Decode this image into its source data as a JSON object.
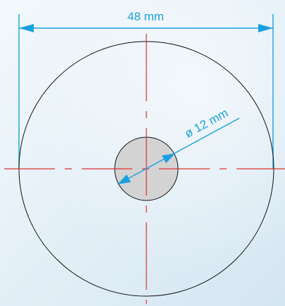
{
  "dimensions": {
    "outer_diameter_label": "48 mm",
    "inner_diameter_label": "ø 12 mm"
  },
  "colors": {
    "dimension": "#1aa0e0",
    "centerline": "#e03030",
    "outline": "#111111",
    "hole_fill": "#d3d3d3",
    "background": "#e6f1f8"
  }
}
